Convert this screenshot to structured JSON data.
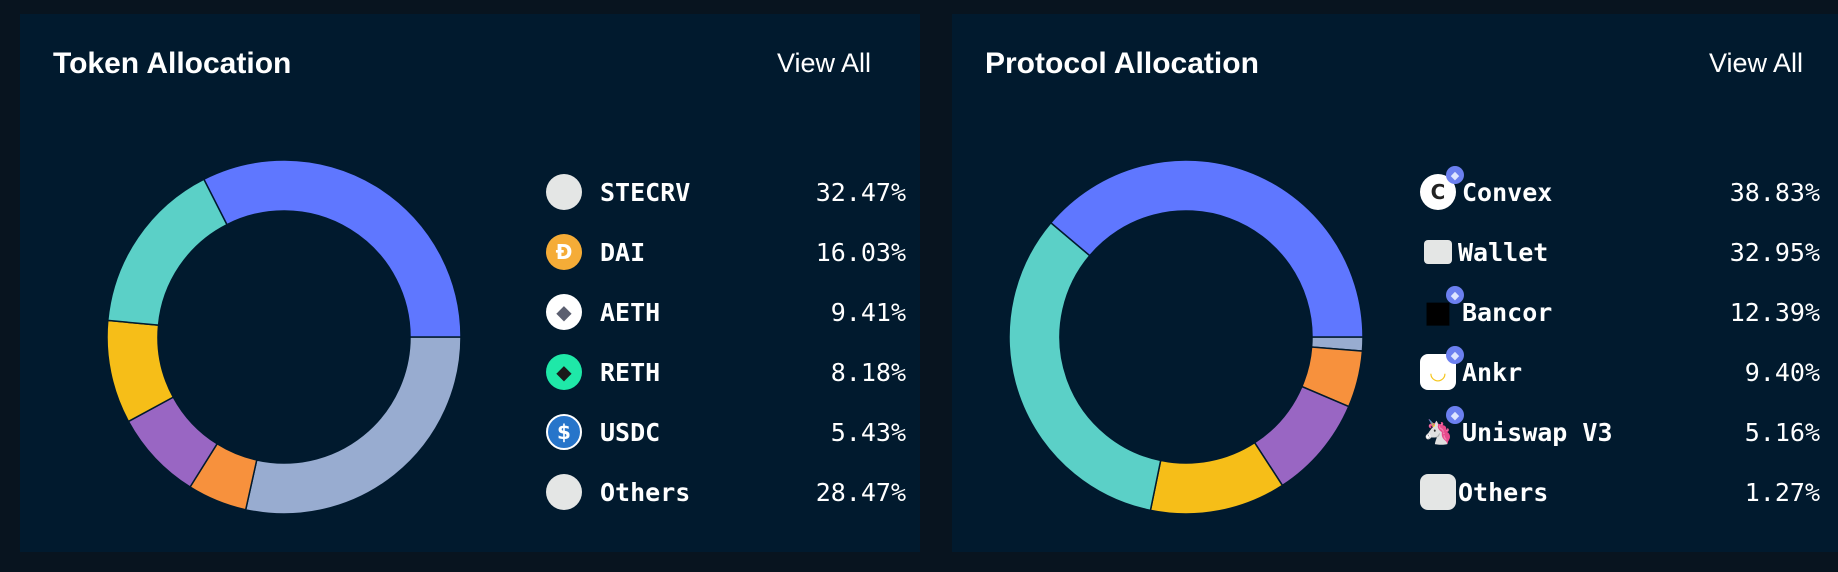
{
  "token_allocation": {
    "title": "Token Allocation",
    "view_all": "View All",
    "items": [
      {
        "name": "STECRV",
        "pct": "32.47%",
        "value": 32.47,
        "color": "#5f77ff",
        "icon": "generic-token-icon"
      },
      {
        "name": "DAI",
        "pct": "16.03%",
        "value": 16.03,
        "color": "#5bd0c7",
        "icon": "dai-icon"
      },
      {
        "name": "AETH",
        "pct": "9.41%",
        "value": 9.41,
        "color": "#f6be18",
        "icon": "ethereum-icon"
      },
      {
        "name": "RETH",
        "pct": "8.18%",
        "value": 8.18,
        "color": "#9966c3",
        "icon": "reth-icon"
      },
      {
        "name": "USDC",
        "pct": "5.43%",
        "value": 5.43,
        "color": "#f7913d",
        "icon": "usdc-icon"
      },
      {
        "name": "Others",
        "pct": "28.47%",
        "value": 28.47,
        "color": "#98acd0",
        "icon": "generic-token-icon"
      }
    ]
  },
  "protocol_allocation": {
    "title": "Protocol Allocation",
    "view_all": "View All",
    "items": [
      {
        "name": "Convex",
        "pct": "38.83%",
        "value": 38.83,
        "color": "#5f77ff",
        "icon": "convex-icon"
      },
      {
        "name": "Wallet",
        "pct": "32.95%",
        "value": 32.95,
        "color": "#5bd0c7",
        "icon": "wallet-icon"
      },
      {
        "name": "Bancor",
        "pct": "12.39%",
        "value": 12.39,
        "color": "#f6be18",
        "icon": "bancor-icon"
      },
      {
        "name": "Ankr",
        "pct": "9.40%",
        "value": 9.4,
        "color": "#9966c3",
        "icon": "ankr-icon"
      },
      {
        "name": "Uniswap V3",
        "pct": "5.16%",
        "value": 5.16,
        "color": "#f7913d",
        "icon": "uniswap-icon"
      },
      {
        "name": "Others",
        "pct": "1.27%",
        "value": 1.27,
        "color": "#98acd0",
        "icon": "generic-protocol-icon"
      }
    ]
  },
  "chart_data": [
    {
      "type": "pie",
      "variant": "donut",
      "categories": [
        "STECRV",
        "DAI",
        "AETH",
        "RETH",
        "USDC",
        "Others"
      ],
      "values": [
        32.47,
        16.03,
        9.41,
        8.18,
        5.43,
        28.47
      ]
    },
    {
      "type": "pie",
      "variant": "donut",
      "categories": [
        "Convex",
        "Wallet",
        "Bancor",
        "Ankr",
        "Uniswap V3",
        "Others"
      ],
      "values": [
        38.83,
        32.95,
        12.39,
        9.4,
        5.16,
        1.27
      ]
    }
  ]
}
